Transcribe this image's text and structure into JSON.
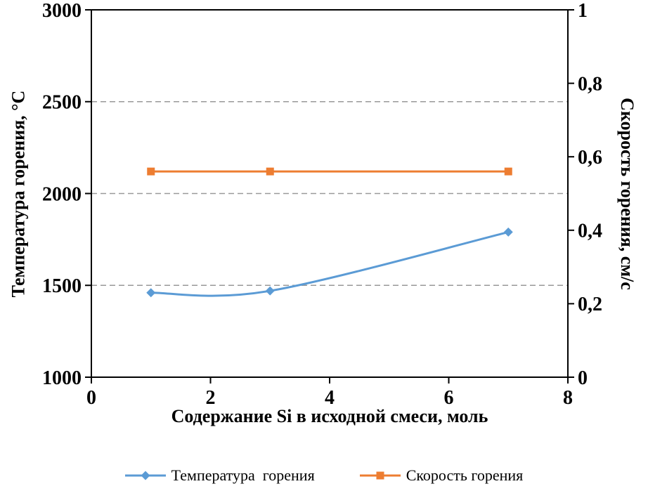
{
  "chart_data": {
    "type": "line",
    "title": "",
    "x_axis": {
      "label": "Содержание Si в исходной смеси, моль",
      "min": 0,
      "max": 8,
      "ticks": [
        "0",
        "2",
        "4",
        "6",
        "8"
      ]
    },
    "left_axis": {
      "label": "Температура горения, °C",
      "min": 1000,
      "max": 3000,
      "ticks": [
        "1000",
        "1500",
        "2000",
        "2500",
        "3000"
      ]
    },
    "right_axis": {
      "label": "Скорость горения, см/с",
      "min": 0,
      "max": 1,
      "ticks": [
        "0",
        "0,2",
        "0,4",
        "0,6",
        "0,8",
        "1"
      ]
    },
    "series": [
      {
        "name": "Температура  горения",
        "axis": "left",
        "color": "#5B9BD5",
        "marker": "diamond",
        "smooth": true,
        "points": [
          {
            "x": 1,
            "y": 1460
          },
          {
            "x": 3,
            "y": 1470
          },
          {
            "x": 7,
            "y": 1790
          }
        ]
      },
      {
        "name": "Скорость горения",
        "axis": "right",
        "color": "#ED7D31",
        "marker": "square",
        "smooth": false,
        "points": [
          {
            "x": 1,
            "y": 0.56
          },
          {
            "x": 3,
            "y": 0.56
          },
          {
            "x": 7,
            "y": 0.56
          }
        ]
      }
    ],
    "grid": {
      "color": "#999999",
      "dash": "8 5"
    },
    "legend_position": "bottom"
  }
}
